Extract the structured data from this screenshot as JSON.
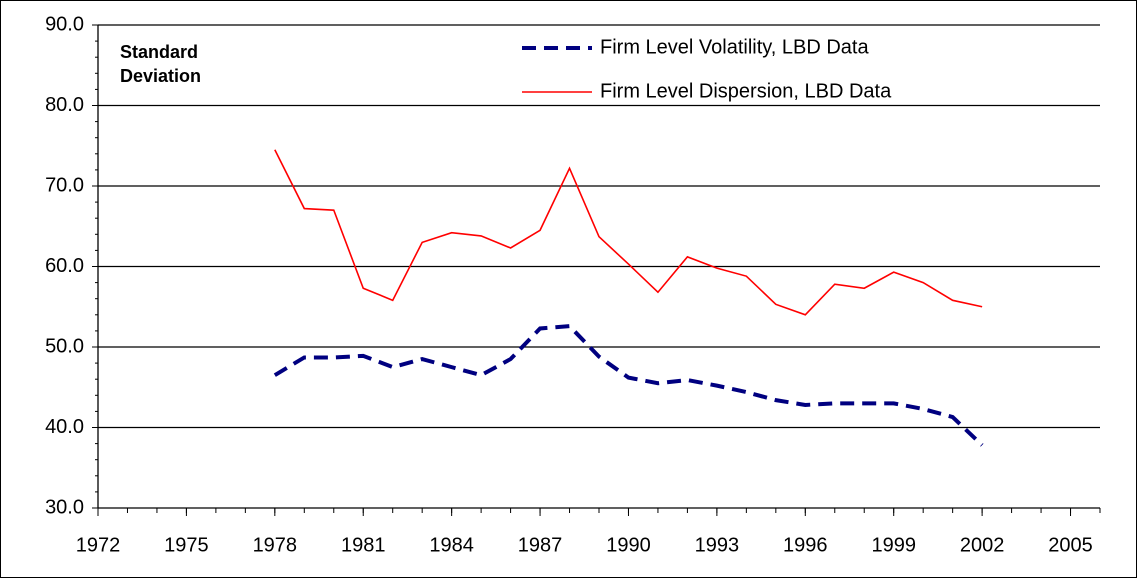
{
  "chart_data": {
    "type": "line",
    "annotation": "Standard Deviation",
    "x": [
      1978,
      1979,
      1980,
      1981,
      1982,
      1983,
      1984,
      1985,
      1986,
      1987,
      1988,
      1989,
      1990,
      1991,
      1992,
      1993,
      1994,
      1995,
      1996,
      1997,
      1998,
      1999,
      2000,
      2001,
      2002
    ],
    "series": [
      {
        "name": "Firm Level Volatility, LBD Data",
        "color": "#000080",
        "dash": true,
        "values": [
          46.5,
          48.7,
          48.7,
          48.9,
          47.5,
          48.5,
          47.5,
          46.5,
          48.5,
          52.3,
          52.6,
          48.8,
          46.2,
          45.5,
          45.9,
          45.2,
          44.4,
          43.4,
          42.8,
          43.0,
          43.0,
          43.0,
          42.3,
          41.3,
          37.8
        ]
      },
      {
        "name": "Firm Level Dispersion, LBD Data",
        "color": "#ff0000",
        "dash": false,
        "values": [
          74.5,
          67.2,
          67.0,
          57.3,
          55.8,
          63.0,
          64.2,
          63.8,
          62.3,
          64.5,
          72.2,
          63.7,
          60.3,
          56.8,
          61.2,
          59.8,
          58.8,
          55.3,
          54.0,
          57.8,
          57.3,
          59.3,
          58.0,
          55.8,
          55.0
        ]
      }
    ],
    "xlim": [
      1972,
      2006
    ],
    "xticks": [
      1972,
      1975,
      1978,
      1981,
      1984,
      1987,
      1990,
      1993,
      1996,
      1999,
      2002,
      2005
    ],
    "ylim": [
      30,
      90
    ],
    "yticks": [
      {
        "value": 30,
        "label": "30.0"
      },
      {
        "value": 40,
        "label": "40.0"
      },
      {
        "value": 50,
        "label": "50.0"
      },
      {
        "value": 60,
        "label": "60.0"
      },
      {
        "value": 70,
        "label": "70.0"
      },
      {
        "value": 80,
        "label": "80.0"
      },
      {
        "value": 90,
        "label": "90.0"
      }
    ],
    "grid": true
  }
}
